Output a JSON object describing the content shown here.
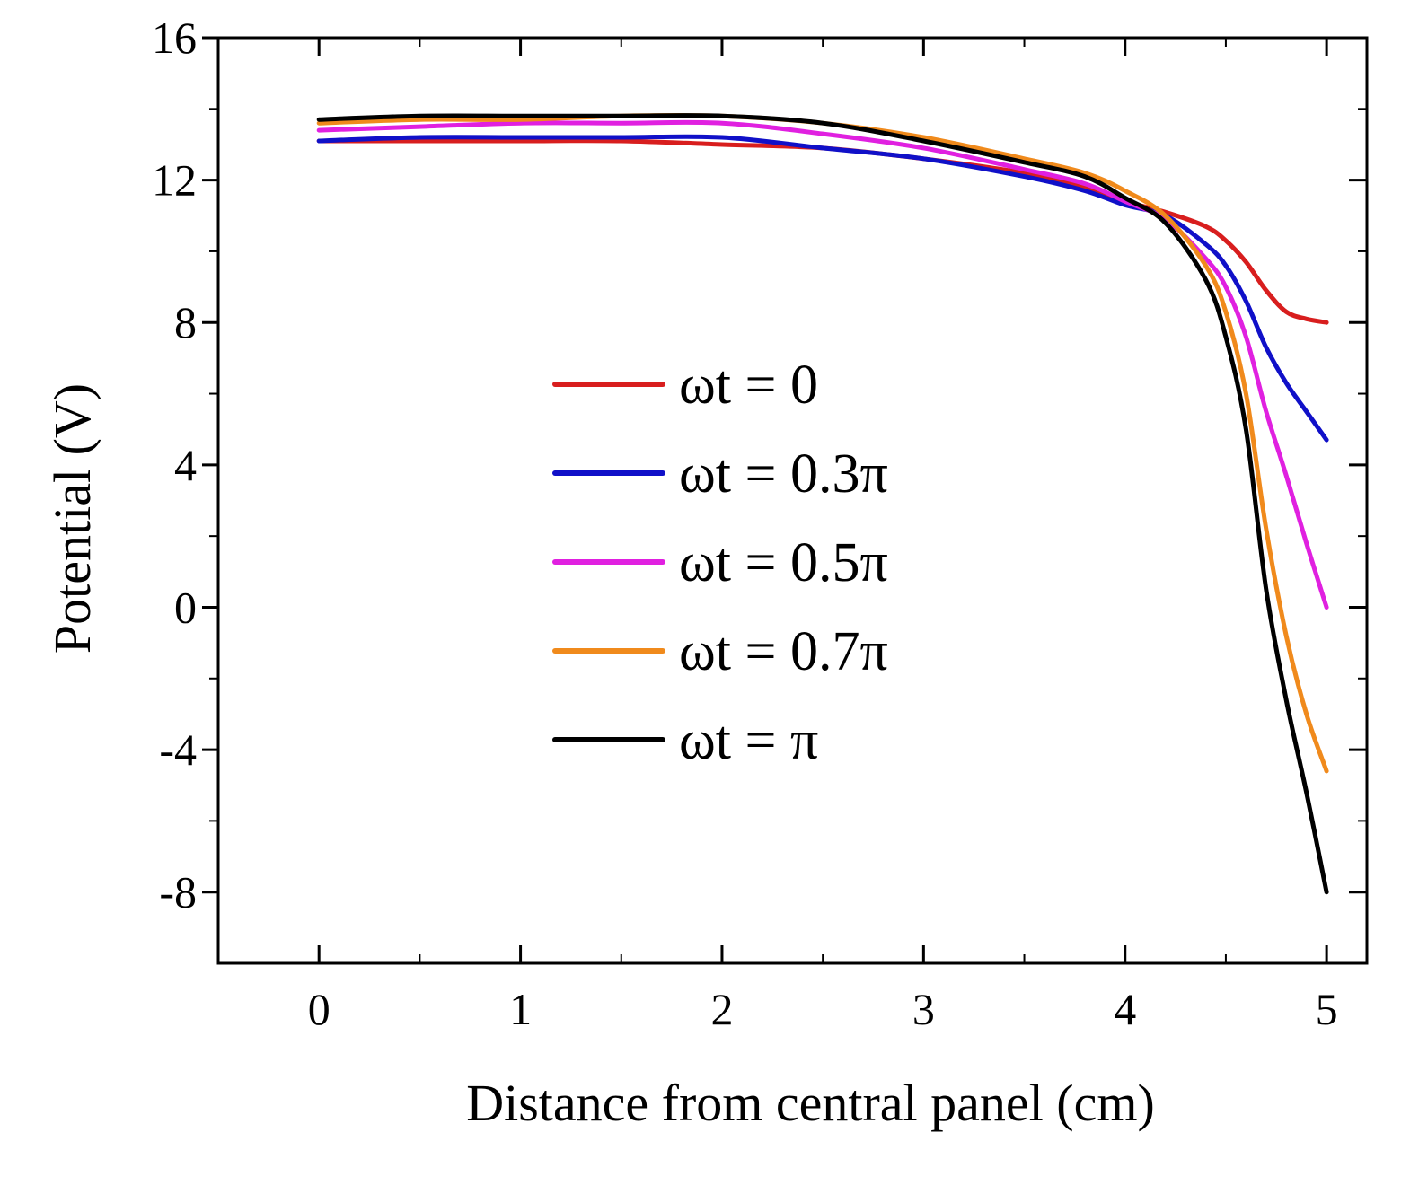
{
  "chart_data": {
    "type": "line",
    "title": "",
    "xlabel": "Distance from central panel (cm)",
    "ylabel": "Potential (V)",
    "xlim": [
      -0.5,
      5.2
    ],
    "ylim": [
      -10,
      16
    ],
    "xticks": [
      0,
      1,
      2,
      3,
      4,
      5
    ],
    "yticks": [
      -8,
      -4,
      0,
      4,
      8,
      12,
      16
    ],
    "xtick_labels": [
      "0",
      "1",
      "2",
      "3",
      "4",
      "5"
    ],
    "ytick_labels": [
      "-8",
      "-4",
      "0",
      "4",
      "8",
      "12",
      "16"
    ],
    "grid": false,
    "legend_position": "center",
    "series": [
      {
        "name": "ωt = 0",
        "color": "#d81e1e",
        "x": [
          0,
          0.5,
          1,
          1.5,
          2,
          2.5,
          3,
          3.5,
          3.8,
          4,
          4.2,
          4.4,
          4.5,
          4.6,
          4.7,
          4.8,
          4.9,
          5
        ],
        "y": [
          13.1,
          13.1,
          13.1,
          13.1,
          13.0,
          12.9,
          12.6,
          12.2,
          11.8,
          11.4,
          11.1,
          10.7,
          10.3,
          9.7,
          8.9,
          8.3,
          8.1,
          8.0
        ]
      },
      {
        "name": "ωt = 0.3π",
        "color": "#1010c8",
        "x": [
          0,
          0.5,
          1,
          1.5,
          2,
          2.5,
          3,
          3.5,
          3.8,
          4,
          4.2,
          4.4,
          4.5,
          4.6,
          4.7,
          4.8,
          4.9,
          5
        ],
        "y": [
          13.1,
          13.2,
          13.2,
          13.2,
          13.2,
          12.9,
          12.6,
          12.1,
          11.7,
          11.3,
          11.0,
          10.2,
          9.6,
          8.6,
          7.3,
          6.3,
          5.5,
          4.7
        ]
      },
      {
        "name": "ωt = 0.5π",
        "color": "#e020e0",
        "x": [
          0,
          0.5,
          1,
          1.5,
          2,
          2.5,
          3,
          3.5,
          3.8,
          4,
          4.2,
          4.4,
          4.5,
          4.6,
          4.7,
          4.8,
          4.9,
          5
        ],
        "y": [
          13.4,
          13.5,
          13.6,
          13.6,
          13.6,
          13.3,
          12.9,
          12.3,
          11.9,
          11.4,
          10.9,
          9.8,
          9.0,
          7.6,
          5.5,
          3.7,
          1.8,
          0.0
        ]
      },
      {
        "name": "ωt = 0.7π",
        "color": "#f08a1c",
        "x": [
          0,
          0.5,
          1,
          1.5,
          2,
          2.5,
          3,
          3.5,
          3.8,
          4,
          4.2,
          4.4,
          4.5,
          4.6,
          4.7,
          4.8,
          4.9,
          5
        ],
        "y": [
          13.6,
          13.7,
          13.7,
          13.8,
          13.8,
          13.6,
          13.2,
          12.6,
          12.2,
          11.7,
          11.0,
          9.6,
          8.3,
          6.0,
          2.2,
          -0.8,
          -3.0,
          -4.6
        ]
      },
      {
        "name": "ωt = π",
        "color": "#000000",
        "x": [
          0,
          0.5,
          1,
          1.5,
          2,
          2.5,
          3,
          3.5,
          3.8,
          4,
          4.2,
          4.4,
          4.5,
          4.6,
          4.7,
          4.8,
          4.9,
          5
        ],
        "y": [
          13.7,
          13.8,
          13.8,
          13.8,
          13.8,
          13.6,
          13.1,
          12.5,
          12.1,
          11.5,
          10.8,
          9.2,
          7.6,
          5.0,
          0.5,
          -2.6,
          -5.2,
          -8.0
        ]
      }
    ]
  }
}
